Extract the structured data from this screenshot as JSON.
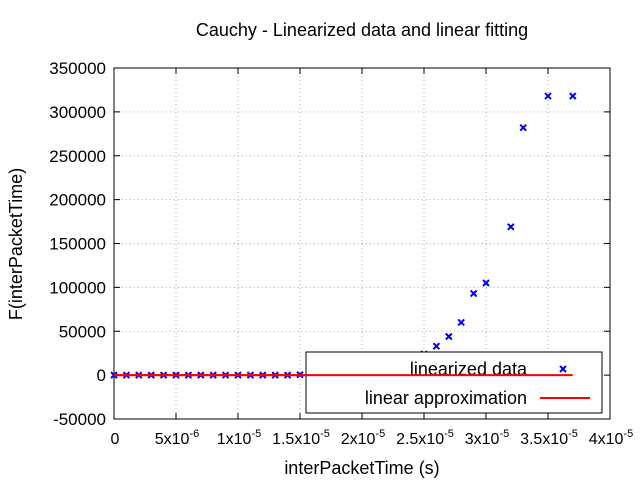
{
  "chart_data": {
    "type": "scatter",
    "title": "Cauchy - Linearized data and linear fitting",
    "xlabel": "interPacketTime (s)",
    "ylabel": "F(interPacketTime)",
    "xlim": [
      0,
      4e-05
    ],
    "ylim": [
      -50000,
      350000
    ],
    "grid": true,
    "legend_position": "bottom-right",
    "x_ticks": [
      {
        "value": 0,
        "mant": "0",
        "exp": ""
      },
      {
        "value": 5e-06,
        "mant": "5x10",
        "exp": "-6"
      },
      {
        "value": 1e-05,
        "mant": "1x10",
        "exp": "-5"
      },
      {
        "value": 1.5e-05,
        "mant": "1.5x10",
        "exp": "-5"
      },
      {
        "value": 2e-05,
        "mant": "2x10",
        "exp": "-5"
      },
      {
        "value": 2.5e-05,
        "mant": "2.5x10",
        "exp": "-5"
      },
      {
        "value": 3e-05,
        "mant": "3x10",
        "exp": "-5"
      },
      {
        "value": 3.5e-05,
        "mant": "3.5x10",
        "exp": "-5"
      },
      {
        "value": 4e-05,
        "mant": "4x10",
        "exp": "-5"
      }
    ],
    "y_ticks": [
      {
        "value": -50000,
        "label": "-50000"
      },
      {
        "value": 0,
        "label": "0"
      },
      {
        "value": 50000,
        "label": "50000"
      },
      {
        "value": 100000,
        "label": "100000"
      },
      {
        "value": 150000,
        "label": "150000"
      },
      {
        "value": 200000,
        "label": "200000"
      },
      {
        "value": 250000,
        "label": "250000"
      },
      {
        "value": 300000,
        "label": "300000"
      },
      {
        "value": 350000,
        "label": "350000"
      }
    ],
    "series": [
      {
        "name": "linearized data",
        "kind": "points",
        "marker": "x",
        "color": "#0000ff",
        "x": [
          0,
          1e-06,
          2e-06,
          3e-06,
          4e-06,
          5e-06,
          6e-06,
          7e-06,
          8e-06,
          9e-06,
          1e-05,
          1.1e-05,
          1.2e-05,
          1.3e-05,
          1.4e-05,
          1.5e-05,
          1.6e-05,
          1.7e-05,
          1.8e-05,
          1.9e-05,
          2e-05,
          2.1e-05,
          2.2e-05,
          2.3e-05,
          2.4e-05,
          2.5e-05,
          2.6e-05,
          2.7e-05,
          2.8e-05,
          2.9e-05,
          3e-05,
          3.2e-05,
          3.3e-05,
          3.5e-05,
          3.7e-05
        ],
        "y": [
          0,
          0,
          0,
          0,
          0,
          0,
          0,
          0,
          0,
          0,
          0,
          0,
          0,
          0,
          0,
          500,
          1000,
          1500,
          2500,
          3500,
          4500,
          6000,
          8000,
          12000,
          17000,
          24000,
          33000,
          44000,
          60000,
          93000,
          105000,
          169000,
          282000,
          318000,
          318000
        ]
      },
      {
        "name": "linear approximation",
        "kind": "line",
        "color": "#ff0000",
        "x": [
          0,
          3.7e-05
        ],
        "y": [
          0,
          0
        ]
      }
    ]
  }
}
